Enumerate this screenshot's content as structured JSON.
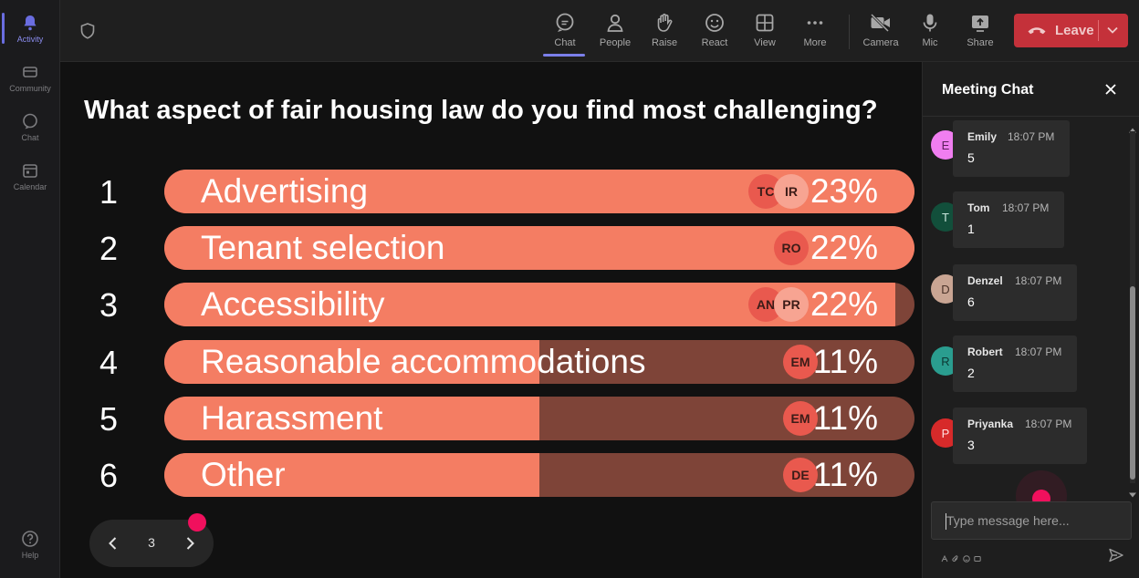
{
  "rail": {
    "items": [
      {
        "label": "Activity",
        "active": true
      },
      {
        "label": "Community"
      },
      {
        "label": "Chat"
      },
      {
        "label": "Calendar"
      },
      {
        "label": "Help"
      }
    ]
  },
  "toolbar": {
    "chat": "Chat",
    "people": "People",
    "raise": "Raise",
    "react": "React",
    "view": "View",
    "more": "More",
    "camera": "Camera",
    "mic": "Mic",
    "share": "Share",
    "leave": "Leave"
  },
  "poll": {
    "question": "What aspect of fair housing law do you find most challenging?",
    "options": [
      {
        "num": "1",
        "label": "Advertising",
        "pct": "23%",
        "fill": 1.0,
        "badges": [
          "TC",
          "IR"
        ]
      },
      {
        "num": "2",
        "label": "Tenant selection",
        "pct": "22%",
        "fill": 1.0,
        "badges": [
          "RO"
        ]
      },
      {
        "num": "3",
        "label": "Accessibility",
        "pct": "22%",
        "fill": 0.975,
        "badges": [
          "AN",
          "PR"
        ]
      },
      {
        "num": "4",
        "label": "Reasonable accommodations",
        "pct": "11%",
        "fill": 0.5,
        "badges": [
          "EM"
        ]
      },
      {
        "num": "5",
        "label": "Harassment",
        "pct": "11%",
        "fill": 0.5,
        "badges": [
          "EM"
        ]
      },
      {
        "num": "6",
        "label": "Other",
        "pct": "11%",
        "fill": 0.5,
        "badges": [
          "DE"
        ]
      }
    ]
  },
  "pager": {
    "page": "3"
  },
  "chat": {
    "title": "Meeting Chat",
    "messages": [
      {
        "initial": "E",
        "name": "Emily",
        "time": "18:07 PM",
        "text": "5",
        "color": "#f07ef0",
        "textColor": "#5b1f5b"
      },
      {
        "initial": "T",
        "name": "Tom",
        "time": "18:07 PM",
        "text": "1",
        "color": "#124f3b",
        "textColor": "#c9e6dc"
      },
      {
        "initial": "D",
        "name": "Denzel",
        "time": "18:07 PM",
        "text": "6",
        "color": "#c9a593",
        "textColor": "#4a3228"
      },
      {
        "initial": "R",
        "name": "Robert",
        "time": "18:07 PM",
        "text": "2",
        "color": "#2a9d8f",
        "textColor": "#0c3833"
      },
      {
        "initial": "P",
        "name": "Priyanka",
        "time": "18:07 PM",
        "text": "3",
        "color": "#d72a2a",
        "textColor": "#ffe1e1"
      }
    ],
    "input_placeholder": "Type message here..."
  }
}
